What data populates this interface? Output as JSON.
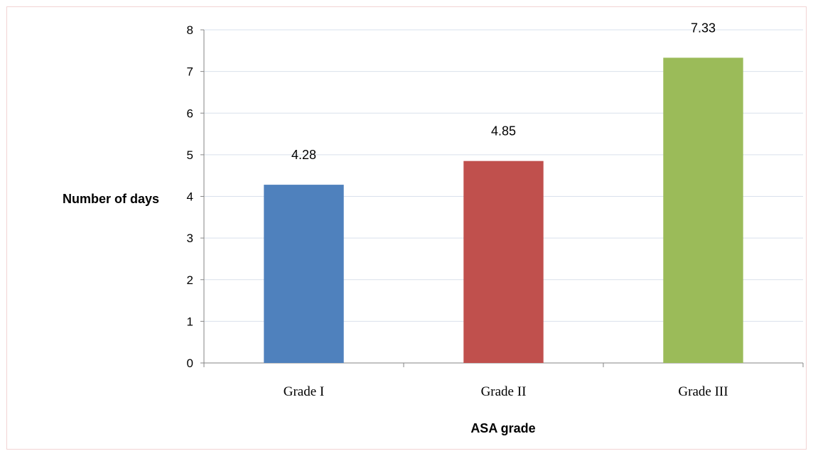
{
  "chart_data": {
    "type": "bar",
    "categories": [
      "Grade I",
      "Grade II",
      "Grade III"
    ],
    "values": [
      4.28,
      4.85,
      7.33
    ],
    "data_labels": [
      "4.28",
      "4.85",
      "7.33"
    ],
    "colors": [
      "#4f81bd",
      "#c0504d",
      "#9bbb59"
    ],
    "xlabel": "ASA grade",
    "ylabel": "Number of days",
    "ylim": [
      0,
      8
    ],
    "yticks": [
      "0",
      "1",
      "2",
      "3",
      "4",
      "5",
      "6",
      "7",
      "8"
    ],
    "grid": true,
    "legend": "none"
  }
}
